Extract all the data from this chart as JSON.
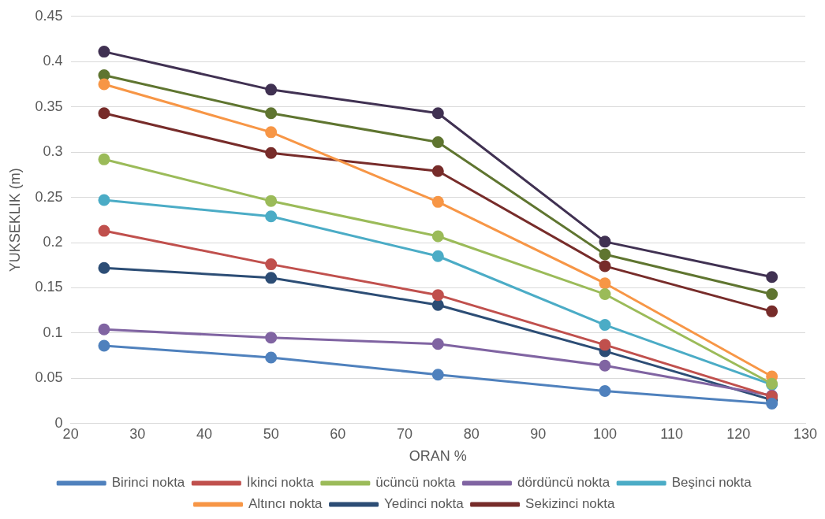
{
  "chart_data": {
    "type": "line",
    "xlabel": "ORAN %",
    "ylabel": "YUKSEKLIK (m)",
    "x": [
      25,
      50,
      75,
      100,
      125
    ],
    "xlim": [
      20,
      130
    ],
    "xticks": [
      20,
      30,
      40,
      50,
      60,
      70,
      80,
      90,
      100,
      110,
      120,
      130
    ],
    "ylim": [
      0,
      0.45
    ],
    "yticks": [
      0,
      0.05,
      0.1,
      0.15,
      0.2,
      0.25,
      0.3,
      0.35,
      0.4,
      0.45
    ],
    "grid": "y",
    "legend": "bottom",
    "marker": "circle",
    "line_style": "solid",
    "series": [
      {
        "name": "Birinci nokta",
        "color": "#4f81bd",
        "values": [
          0.086,
          0.073,
          0.054,
          0.036,
          0.022
        ]
      },
      {
        "name": "İkinci nokta",
        "color": "#c0504d",
        "values": [
          0.213,
          0.176,
          0.142,
          0.087,
          0.03
        ]
      },
      {
        "name": "ücüncü nokta",
        "color": "#9bbb59",
        "values": [
          0.292,
          0.246,
          0.207,
          0.143,
          0.044
        ]
      },
      {
        "name": "dördüncü nokta",
        "color": "#8064a2",
        "values": [
          0.104,
          0.095,
          0.088,
          0.064,
          0.031
        ]
      },
      {
        "name": "Beşinci nokta",
        "color": "#4bacc6",
        "values": [
          0.247,
          0.229,
          0.185,
          0.109,
          0.043
        ]
      },
      {
        "name": "Altıncı nokta",
        "color": "#f79646",
        "values": [
          0.375,
          0.322,
          0.245,
          0.155,
          0.052
        ]
      },
      {
        "name": "Yedinci nokta",
        "color": "#2c4d75",
        "values": [
          0.172,
          0.161,
          0.131,
          0.08,
          0.026
        ]
      },
      {
        "name": "Sekizinci nokta",
        "color": "#772c2a",
        "values": [
          0.343,
          0.299,
          0.279,
          0.174,
          0.124
        ]
      },
      {
        "color": "#5f7530",
        "values": [
          0.385,
          0.343,
          0.311,
          0.187,
          0.143
        ]
      },
      {
        "color": "#403152",
        "values": [
          0.411,
          0.369,
          0.343,
          0.201,
          0.162
        ]
      }
    ]
  }
}
